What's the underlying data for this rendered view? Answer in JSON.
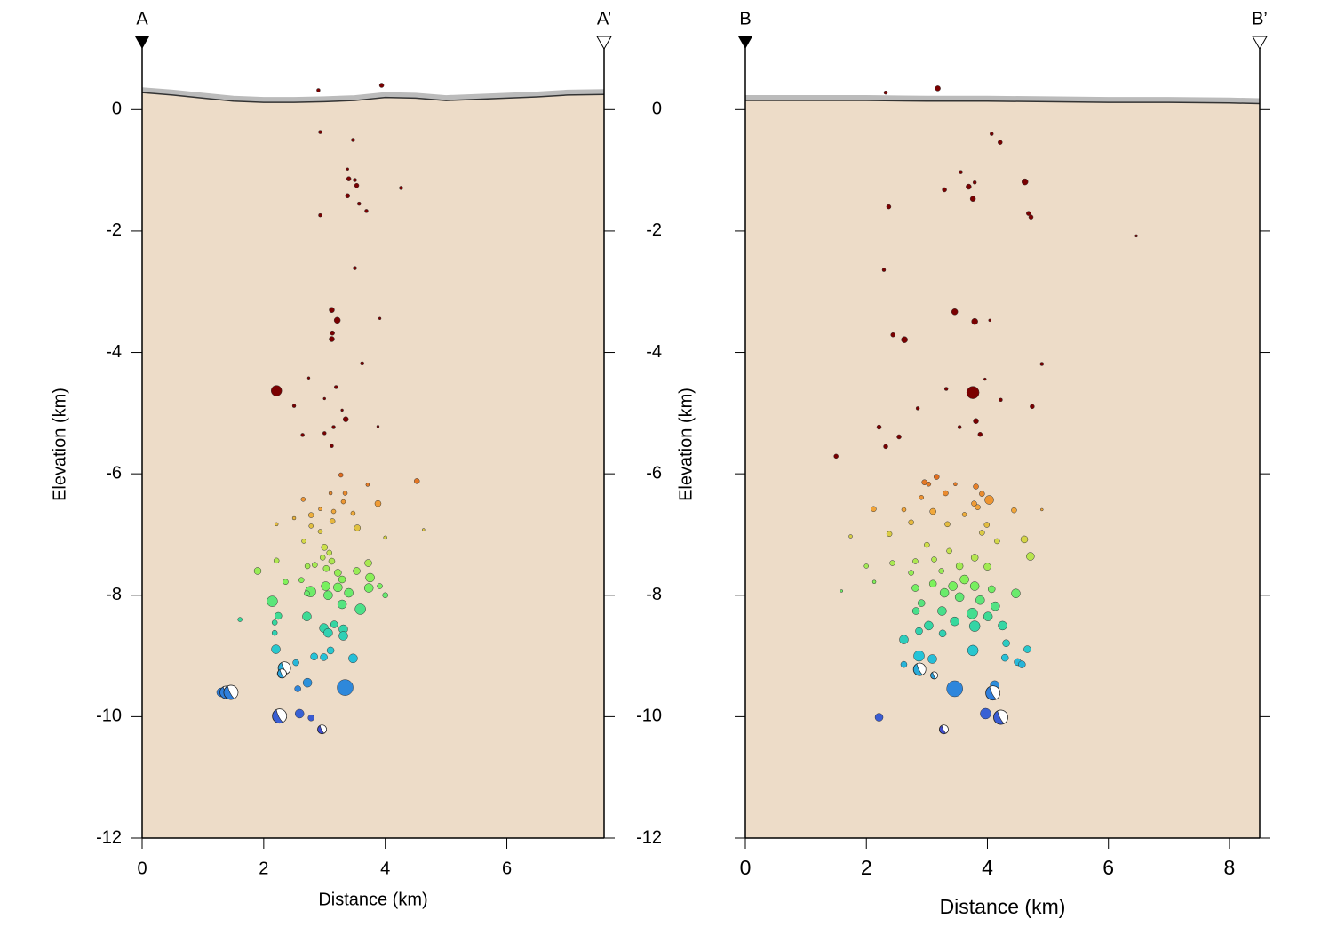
{
  "chart_data": [
    {
      "type": "scatter",
      "markers": [
        "A",
        "A’"
      ],
      "xlabel": "Distance (km)",
      "ylabel": "Elevation (km)",
      "xlim": [
        0,
        7.6
      ],
      "ylim": [
        -12,
        1
      ],
      "xticks": [
        0,
        2,
        4,
        6
      ],
      "yticks": [
        0,
        -2,
        -4,
        -6,
        -8,
        -10,
        -12
      ],
      "fill_color": "#eddcc8",
      "color_scale": {
        "domain": [
          -10.2,
          -6
        ],
        "colors": [
          "#3f4ccf",
          "#2f7fdc",
          "#25c4d8",
          "#38d99a",
          "#7ef25a",
          "#cde04a",
          "#f2a63a",
          "#e06a1e"
        ],
        "above": "#7a0000"
      },
      "topography": {
        "x": [
          0,
          0.5,
          1,
          1.5,
          2,
          2.5,
          3,
          3.5,
          4,
          4.5,
          5,
          5.5,
          6,
          6.5,
          7,
          7.6
        ],
        "y": [
          0.28,
          0.24,
          0.19,
          0.14,
          0.12,
          0.12,
          0.13,
          0.15,
          0.2,
          0.19,
          0.15,
          0.17,
          0.19,
          0.21,
          0.24,
          0.25
        ]
      },
      "x": [
        2.9,
        3.94,
        2.93,
        3.47,
        3.38,
        3.4,
        3.5,
        3.53,
        3.38,
        3.57,
        3.69,
        4.26,
        2.93,
        3.5,
        3.12,
        3.21,
        3.13,
        3.12,
        3.91,
        3.62,
        2.21,
        2.74,
        3.19,
        3.0,
        2.5,
        3.29,
        3.35,
        3.15,
        2.64,
        3.0,
        3.88,
        3.12,
        3.27,
        4.52,
        3.71,
        3.1,
        3.34,
        2.65,
        3.31,
        3.88,
        2.93,
        3.15,
        3.47,
        2.78,
        2.5,
        3.13,
        3.54,
        4.63,
        2.21,
        2.78,
        2.93,
        4.0,
        2.66,
        3.0,
        3.08,
        2.97,
        3.12,
        2.21,
        2.84,
        3.03,
        3.22,
        1.9,
        2.72,
        3.53,
        3.72,
        2.36,
        2.62,
        3.29,
        3.75,
        3.02,
        3.22,
        2.77,
        3.73,
        3.91,
        3.06,
        3.4,
        2.71,
        2.14,
        4.0,
        1.61,
        3.29,
        3.59,
        2.24,
        2.71,
        2.18,
        3.16,
        2.99,
        3.31,
        3.06,
        3.31,
        2.18,
        2.2,
        3.1,
        2.83,
        2.99,
        3.47,
        2.53,
        2.28,
        2.56,
        2.72,
        3.34,
        1.3,
        2.59,
        2.78
      ],
      "y": [
        0.32,
        0.4,
        -0.37,
        -0.5,
        -0.98,
        -1.14,
        -1.16,
        -1.25,
        -1.42,
        -1.55,
        -1.67,
        -1.29,
        -1.74,
        -2.61,
        -3.3,
        -3.47,
        -3.68,
        -3.78,
        -3.44,
        -4.18,
        -4.63,
        -4.42,
        -4.57,
        -4.76,
        -4.88,
        -4.95,
        -5.1,
        -5.23,
        -5.36,
        -5.33,
        -5.22,
        -5.54,
        -6.02,
        -6.12,
        -6.18,
        -6.32,
        -6.32,
        -6.42,
        -6.46,
        -6.49,
        -6.58,
        -6.62,
        -6.65,
        -6.68,
        -6.73,
        -6.78,
        -6.89,
        -6.92,
        -6.83,
        -6.86,
        -6.95,
        -7.05,
        -7.11,
        -7.21,
        -7.3,
        -7.38,
        -7.44,
        -7.43,
        -7.5,
        -7.56,
        -7.63,
        -7.6,
        -7.52,
        -7.6,
        -7.47,
        -7.78,
        -7.75,
        -7.74,
        -7.71,
        -7.85,
        -7.87,
        -7.94,
        -7.88,
        -7.85,
        -8.0,
        -7.96,
        -7.97,
        -8.1,
        -8.0,
        -8.4,
        -8.15,
        -8.23,
        -8.34,
        -8.35,
        -8.45,
        -8.48,
        -8.54,
        -8.56,
        -8.62,
        -8.67,
        -8.62,
        -8.89,
        -8.91,
        -9.01,
        -9.02,
        -9.04,
        -9.11,
        -9.29,
        -9.54,
        -9.44,
        -9.52,
        -9.6,
        -9.95,
        -10.02
      ],
      "sizes": [
        2,
        2.5,
        2,
        2,
        1.5,
        2.5,
        2,
        2.5,
        2.5,
        2,
        2,
        2,
        2,
        2,
        3,
        3.5,
        2.5,
        3,
        1.5,
        2,
        6,
        1.5,
        2,
        1.5,
        2,
        1.5,
        3,
        2,
        2,
        2,
        1.5,
        2,
        2.5,
        3,
        2,
        2,
        2.5,
        2.5,
        2.5,
        3.5,
        2,
        2.5,
        2.5,
        3,
        2,
        3,
        3.5,
        1.5,
        2,
        2.5,
        2.5,
        2,
        2.5,
        3.5,
        3,
        3,
        3.5,
        3,
        3,
        3.5,
        4,
        4,
        3,
        4,
        4,
        3,
        3,
        4,
        5,
        5,
        5,
        6,
        5,
        3,
        5,
        5,
        3,
        6,
        3,
        2.5,
        5,
        6,
        4,
        5,
        3,
        4,
        5,
        5,
        5,
        5,
        3,
        5,
        4,
        4,
        4,
        5,
        3.5,
        4,
        3.5,
        5,
        9,
        5,
        5,
        3.5
      ],
      "mechanisms": {
        "x": [
          1.38,
          1.46,
          2.34,
          2.3,
          2.26,
          2.96
        ],
        "y": [
          -9.6,
          -9.6,
          -9.2,
          -9.29,
          -9.99,
          -10.21
        ],
        "sizes": [
          7,
          8,
          7,
          5,
          8,
          5
        ]
      }
    },
    {
      "type": "scatter",
      "markers": [
        "B",
        "B’"
      ],
      "xlabel": "Distance (km)",
      "ylabel": "Elevation (km)",
      "xlim": [
        0,
        8.5
      ],
      "ylim": [
        -12,
        1
      ],
      "xticks": [
        0,
        2,
        4,
        6,
        8
      ],
      "yticks": [
        0,
        -2,
        -4,
        -6,
        -8,
        -10,
        -12
      ],
      "fill_color": "#eddcc8",
      "color_scale": {
        "domain": [
          -10.2,
          -6
        ],
        "colors": [
          "#3f4ccf",
          "#2f7fdc",
          "#25c4d8",
          "#38d99a",
          "#7ef25a",
          "#cde04a",
          "#f2a63a",
          "#e06a1e"
        ],
        "above": "#7a0000"
      },
      "topography": {
        "x": [
          0,
          1,
          2,
          3,
          4,
          5,
          6,
          7,
          8,
          8.5
        ],
        "y": [
          0.15,
          0.15,
          0.15,
          0.14,
          0.14,
          0.13,
          0.12,
          0.12,
          0.11,
          0.1
        ]
      },
      "x": [
        2.32,
        3.18,
        4.07,
        4.21,
        3.56,
        3.69,
        3.29,
        3.76,
        3.79,
        4.62,
        2.37,
        4.68,
        4.72,
        6.46,
        2.29,
        3.46,
        3.79,
        4.04,
        2.44,
        2.63,
        4.9,
        3.96,
        3.32,
        3.76,
        4.22,
        2.85,
        4.74,
        3.81,
        2.21,
        3.54,
        2.54,
        3.88,
        2.32,
        1.5,
        2.96,
        3.16,
        3.03,
        3.47,
        3.81,
        3.31,
        3.91,
        2.91,
        3.78,
        3.84,
        4.03,
        3.1,
        2.12,
        2.62,
        4.44,
        3.62,
        3.99,
        2.74,
        4.9,
        3.34,
        3.91,
        2.38,
        1.74,
        4.16,
        4.61,
        3.0,
        3.37,
        3.12,
        3.79,
        4.71,
        2.81,
        2.43,
        2.0,
        3.54,
        4.0,
        3.24,
        2.74,
        2.13,
        3.62,
        3.1,
        3.43,
        3.79,
        2.81,
        4.07,
        1.59,
        4.47,
        3.29,
        3.54,
        3.88,
        2.91,
        4.13,
        3.25,
        2.82,
        3.75,
        4.01,
        3.46,
        3.03,
        3.79,
        4.25,
        2.87,
        3.26,
        2.62,
        4.31,
        3.76,
        4.66,
        2.87,
        3.09,
        4.29,
        4.5,
        2.62,
        4.57,
        3.46,
        4.12,
        2.21,
        3.97
      ],
      "y": [
        0.28,
        0.35,
        -0.4,
        -0.54,
        -1.03,
        -1.27,
        -1.32,
        -1.47,
        -1.2,
        -1.19,
        -1.6,
        -1.71,
        -1.77,
        -2.08,
        -2.64,
        -3.33,
        -3.49,
        -3.47,
        -3.71,
        -3.79,
        -4.19,
        -4.44,
        -4.6,
        -4.66,
        -4.78,
        -4.92,
        -4.89,
        -5.13,
        -5.23,
        -5.23,
        -5.39,
        -5.35,
        -5.55,
        -5.71,
        -6.14,
        -6.05,
        -6.17,
        -6.17,
        -6.21,
        -6.32,
        -6.33,
        -6.39,
        -6.49,
        -6.55,
        -6.43,
        -6.62,
        -6.58,
        -6.59,
        -6.6,
        -6.67,
        -6.84,
        -6.8,
        -6.59,
        -6.83,
        -6.97,
        -6.99,
        -7.03,
        -7.11,
        -7.08,
        -7.17,
        -7.27,
        -7.41,
        -7.38,
        -7.36,
        -7.44,
        -7.47,
        -7.52,
        -7.52,
        -7.53,
        -7.6,
        -7.63,
        -7.78,
        -7.74,
        -7.81,
        -7.85,
        -7.85,
        -7.88,
        -7.9,
        -7.93,
        -7.97,
        -7.96,
        -8.03,
        -8.08,
        -8.13,
        -8.18,
        -8.26,
        -8.26,
        -8.3,
        -8.35,
        -8.43,
        -8.5,
        -8.51,
        -8.5,
        -8.59,
        -8.63,
        -8.73,
        -8.79,
        -8.91,
        -8.89,
        -9.0,
        -9.05,
        -9.03,
        -9.1,
        -9.14,
        -9.14,
        -9.54,
        -9.48,
        -10.01,
        -9.95
      ],
      "sizes": [
        2,
        3,
        2,
        2.5,
        2,
        3,
        2.5,
        3,
        2,
        3.5,
        2.5,
        2.5,
        2.5,
        1.5,
        2,
        3.5,
        3.5,
        1.5,
        2.5,
        3.5,
        2,
        1.5,
        2,
        7,
        2,
        2,
        2.5,
        3,
        2.5,
        2,
        2.5,
        2.5,
        2.5,
        2.5,
        3,
        3,
        2.5,
        2,
        3,
        3,
        3,
        2.5,
        3,
        3,
        5,
        3.5,
        3,
        2.5,
        3,
        2.5,
        3,
        3,
        1.5,
        3,
        3,
        3,
        2,
        3,
        4,
        3,
        3,
        3,
        4,
        4.5,
        3,
        3,
        2.5,
        4,
        4,
        3,
        3,
        2,
        5,
        4,
        5,
        5,
        4,
        4,
        1.5,
        5,
        5,
        5,
        5,
        4,
        5,
        5,
        4,
        6,
        5,
        5,
        5,
        6,
        5,
        4,
        4,
        5,
        4,
        6,
        4,
        6,
        5,
        4,
        4,
        3.5,
        4,
        9,
        5,
        4.5,
        6
      ],
      "mechanisms": {
        "x": [
          2.88,
          3.12,
          4.09,
          4.22,
          3.28
        ],
        "y": [
          -9.22,
          -9.32,
          -9.61,
          -10.01,
          -10.21
        ],
        "sizes": [
          7,
          4,
          8,
          8,
          5
        ]
      }
    }
  ]
}
